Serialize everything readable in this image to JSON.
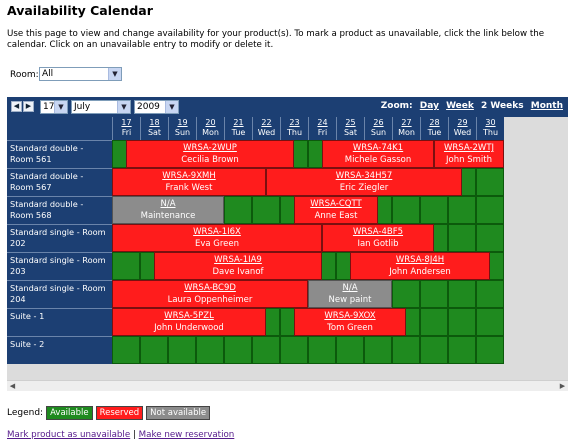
{
  "page": {
    "title": "Availability Calendar",
    "intro": "Use this page to view and change availability for your product(s). To mark a product as unavailable, click the link below the calendar. Click on an unavailable entry to modify or delete it."
  },
  "room_filter": {
    "label": "Room:",
    "value": "All"
  },
  "toolbar": {
    "day": "17",
    "month": "July",
    "year": "2009",
    "zoom_label": "Zoom:",
    "zoom_day": "Day",
    "zoom_week": "Week",
    "zoom_2weeks": "2 Weeks",
    "zoom_month": "Month"
  },
  "days": [
    {
      "num": "17",
      "dow": "Fri"
    },
    {
      "num": "18",
      "dow": "Sat"
    },
    {
      "num": "19",
      "dow": "Sun"
    },
    {
      "num": "20",
      "dow": "Mon"
    },
    {
      "num": "21",
      "dow": "Tue"
    },
    {
      "num": "22",
      "dow": "Wed"
    },
    {
      "num": "23",
      "dow": "Thu"
    },
    {
      "num": "24",
      "dow": "Fri"
    },
    {
      "num": "25",
      "dow": "Sat"
    },
    {
      "num": "26",
      "dow": "Sun"
    },
    {
      "num": "27",
      "dow": "Mon"
    },
    {
      "num": "28",
      "dow": "Tue"
    },
    {
      "num": "29",
      "dow": "Wed"
    },
    {
      "num": "30",
      "dow": "Thu"
    }
  ],
  "rooms": [
    {
      "name": "Standard double - Room 561",
      "bookings": [
        {
          "start": 0.5,
          "end": 6.5,
          "code": "WRSA-2WUP",
          "guest": "Cecilia Brown",
          "status": "reserved"
        },
        {
          "start": 7.5,
          "end": 11.5,
          "code": "WRSA-74K1",
          "guest": "Michele Gasson",
          "status": "reserved"
        },
        {
          "start": 11.5,
          "end": 14,
          "code": "WRSA-2WTJ",
          "guest": "John Smith",
          "status": "reserved"
        }
      ]
    },
    {
      "name": "Standard double - Room 567",
      "bookings": [
        {
          "start": 0,
          "end": 5.5,
          "code": "WRSA-9XMH",
          "guest": "Frank West",
          "status": "reserved"
        },
        {
          "start": 5.5,
          "end": 12.5,
          "code": "WRSA-34H57",
          "guest": "Eric Ziegler",
          "status": "reserved"
        }
      ]
    },
    {
      "name": "Standard double - Room 568",
      "bookings": [
        {
          "start": 0,
          "end": 4,
          "code": "N/A",
          "guest": "Maintenance",
          "status": "na"
        },
        {
          "start": 6.5,
          "end": 9.5,
          "code": "WRSA-CQTT",
          "guest": "Anne East",
          "status": "reserved"
        }
      ]
    },
    {
      "name": "Standard single - Room 202",
      "bookings": [
        {
          "start": 0,
          "end": 7.5,
          "code": "WRSA-1I6X",
          "guest": "Eva Green",
          "status": "reserved"
        },
        {
          "start": 7.5,
          "end": 11.5,
          "code": "WRSA-4BF5",
          "guest": "Ian Gotlib",
          "status": "reserved"
        }
      ]
    },
    {
      "name": "Standard single - Room 203",
      "bookings": [
        {
          "start": 1.5,
          "end": 7.5,
          "code": "WRSA-1IA9",
          "guest": "Dave Ivanof",
          "status": "reserved"
        },
        {
          "start": 8.5,
          "end": 13.5,
          "code": "WRSA-8J4H",
          "guest": "John Andersen",
          "status": "reserved"
        }
      ]
    },
    {
      "name": "Standard single - Room 204",
      "bookings": [
        {
          "start": 0,
          "end": 7,
          "code": "WRSA-BC9D",
          "guest": "Laura Oppenheimer",
          "status": "reserved"
        },
        {
          "start": 7,
          "end": 10,
          "code": "N/A",
          "guest": "New paint",
          "status": "na"
        }
      ]
    },
    {
      "name": "Suite - 1",
      "bookings": [
        {
          "start": 0,
          "end": 5.5,
          "code": "WRSA-5PZL",
          "guest": "John Underwood",
          "status": "reserved"
        },
        {
          "start": 6.5,
          "end": 10.5,
          "code": "WRSA-9XOX",
          "guest": "Tom Green",
          "status": "reserved"
        }
      ]
    },
    {
      "name": "Suite - 2",
      "bookings": []
    }
  ],
  "legend": {
    "label": "Legend:",
    "available": "Available",
    "reserved": "Reserved",
    "not_available": "Not available"
  },
  "colors": {
    "available": "#1f8a1f",
    "reserved": "#ff1c1c",
    "not_available": "#8c8c8c",
    "header": "#1c3f73"
  },
  "links": {
    "mark_unavailable": "Mark product as unavailable",
    "separator": "|",
    "new_reservation": "Make new reservation"
  }
}
